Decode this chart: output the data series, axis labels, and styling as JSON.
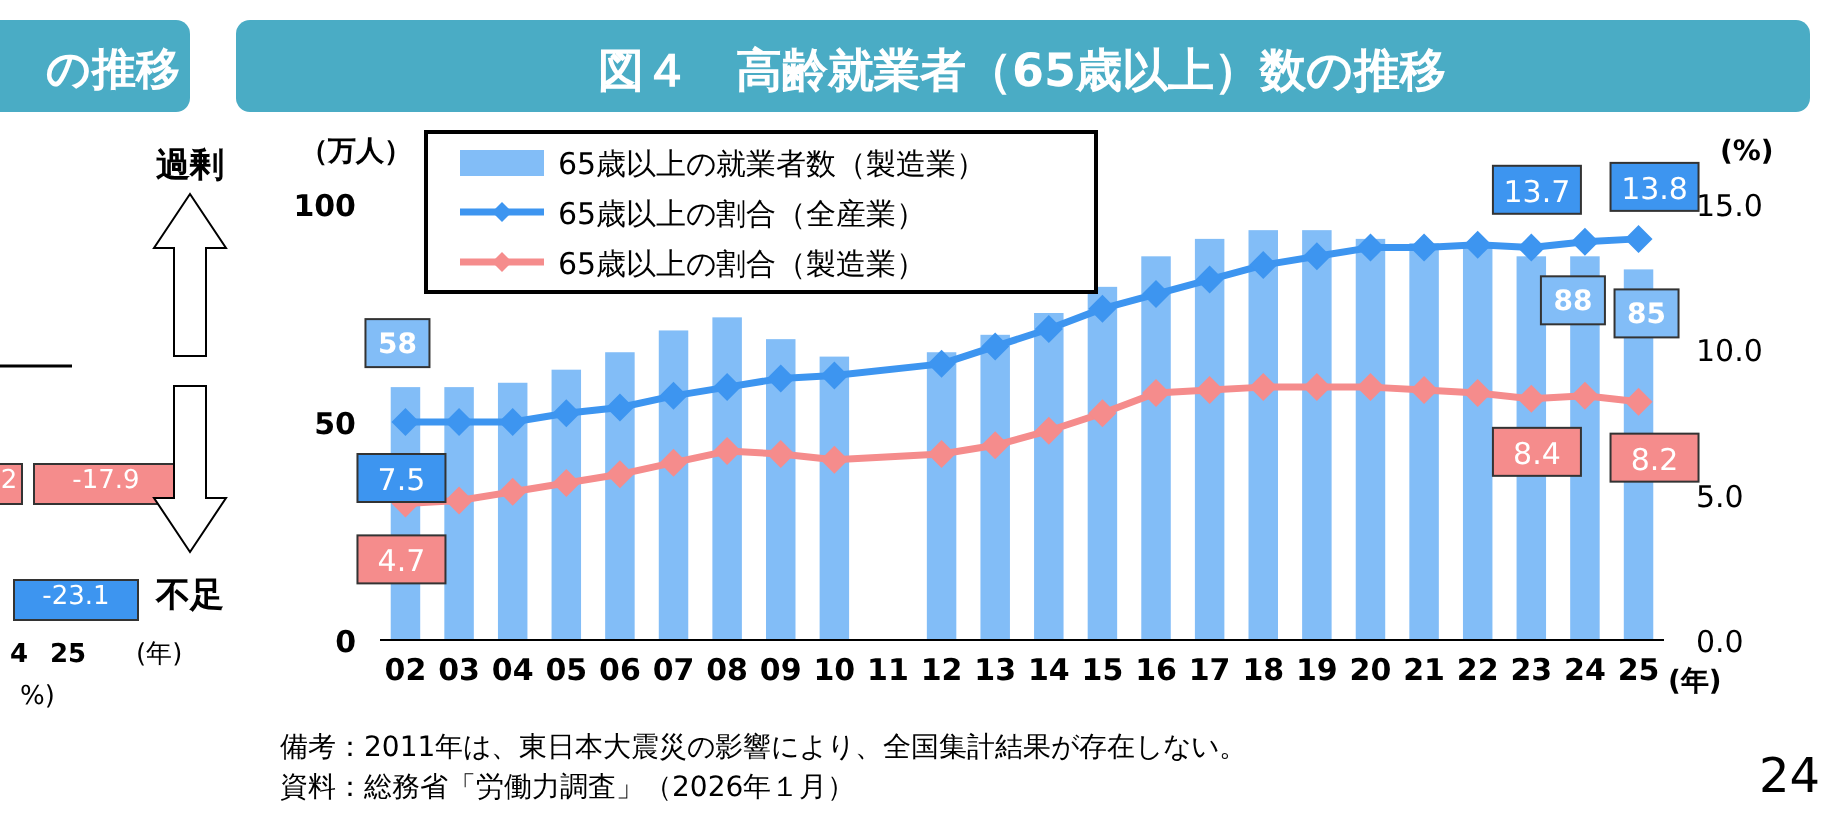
{
  "chart_data": [
    {
      "type": "other",
      "title": "の推移",
      "annotations": [
        "過剰",
        "不足",
        "2",
        "-17.9",
        "-23.1",
        "4",
        "25",
        "(年)",
        "%)"
      ]
    },
    {
      "type": "bar",
      "title": "図４　高齢就業者（65歳以上）数の推移",
      "ylabel": "（万人）",
      "y2label": "(%)",
      "xlabel": "(年)",
      "categories": [
        "02",
        "03",
        "04",
        "05",
        "06",
        "07",
        "08",
        "09",
        "10",
        "11",
        "12",
        "13",
        "14",
        "15",
        "16",
        "17",
        "18",
        "19",
        "20",
        "21",
        "22",
        "23",
        "24",
        "25"
      ],
      "series": [
        {
          "type": "bar",
          "name": "65歳以上の就業者数（製造業）",
          "color": "#82bdf7",
          "values": [
            58,
            58,
            59,
            62,
            66,
            71,
            74,
            69,
            65,
            null,
            66,
            70,
            75,
            81,
            88,
            92,
            94,
            94,
            92,
            91,
            90,
            88,
            88,
            85
          ],
          "value_labels": [
            "58",
            null,
            null,
            null,
            null,
            null,
            null,
            null,
            null,
            null,
            null,
            null,
            null,
            null,
            null,
            null,
            null,
            null,
            null,
            null,
            null,
            null,
            "88",
            "85"
          ]
        },
        {
          "type": "line",
          "axis": "y2",
          "name": "65歳以上の割合（全産業）",
          "color": "#3d95f0",
          "values": [
            7.5,
            7.5,
            7.5,
            7.8,
            8.0,
            8.4,
            8.7,
            9.0,
            9.1,
            null,
            9.5,
            10.1,
            10.7,
            11.4,
            11.9,
            12.4,
            12.9,
            13.2,
            13.5,
            13.5,
            13.6,
            13.5,
            13.7,
            13.8
          ],
          "value_labels": [
            "7.5",
            null,
            null,
            null,
            null,
            null,
            null,
            null,
            null,
            null,
            null,
            null,
            null,
            null,
            null,
            null,
            null,
            null,
            null,
            null,
            null,
            null,
            "13.7",
            "13.8"
          ]
        },
        {
          "type": "line",
          "axis": "y2",
          "name": "65歳以上の割合（製造業）",
          "color": "#f58c8c",
          "values": [
            4.7,
            4.8,
            5.1,
            5.4,
            5.7,
            6.1,
            6.5,
            6.4,
            6.2,
            null,
            6.4,
            6.7,
            7.2,
            7.8,
            8.5,
            8.6,
            8.7,
            8.7,
            8.7,
            8.6,
            8.5,
            8.3,
            8.4,
            8.2
          ],
          "value_labels": [
            "4.7",
            null,
            null,
            null,
            null,
            null,
            null,
            null,
            null,
            null,
            null,
            null,
            null,
            null,
            null,
            null,
            null,
            null,
            null,
            null,
            null,
            null,
            "8.4",
            "8.2"
          ]
        }
      ],
      "ylim": [
        0,
        100
      ],
      "yticks": [
        0,
        50,
        100
      ],
      "y2lim": [
        0,
        15
      ],
      "y2ticks": [
        {
          "value": 0,
          "label": "0.0"
        },
        {
          "value": 5,
          "label": "5.0"
        },
        {
          "value": 10,
          "label": "10.0"
        },
        {
          "value": 15,
          "label": "15.0"
        }
      ],
      "marker": "diamond",
      "legend": "top left",
      "grid": false,
      "annotations": [
        "備考：2011年は、東日本大震災の影響により、全国集計結果が存在しない。",
        "資料：総務省「労働力調査」（2026年１月）",
        "24"
      ]
    }
  ]
}
